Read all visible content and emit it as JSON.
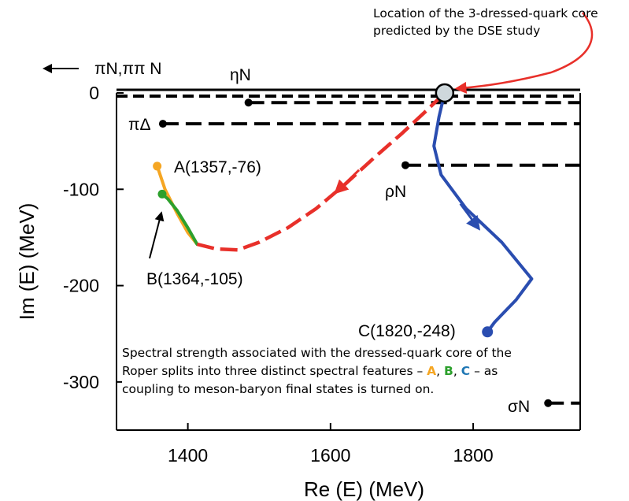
{
  "annotations": {
    "core_location": "Location of the 3-dressed-quark core predicted by the DSE study",
    "spectral_note_prefix": "Spectral strength associated with the dressed-quark core of the Roper splits into three distinct spectral features –",
    "spectral_note_a": "A",
    "spectral_note_sep1": ",",
    "spectral_note_b": "B",
    "spectral_note_sep2": ",",
    "spectral_note_c": "C",
    "spectral_note_suffix": "– as coupling to meson-baryon final states is turned on."
  },
  "colors": {
    "A": "#f5a623",
    "B": "#2ca02c",
    "C": "#2a4db0",
    "dse_path": "#e8302a",
    "arrow": "#e8302a"
  },
  "chart_data": {
    "type": "line",
    "xlabel": "Re (E) (MeV)",
    "ylabel": "Im (E) (MeV)",
    "xlim": [
      1300,
      1950
    ],
    "ylim": [
      -350,
      0
    ],
    "xticks": [
      1400,
      1600,
      1800
    ],
    "yticks": [
      0,
      -100,
      -200,
      -300
    ],
    "thresholds": [
      {
        "label": "πN,ππ N",
        "y": 0,
        "x_start": 1300,
        "direction": "left-arrow"
      },
      {
        "label": "ηN",
        "y": -10,
        "x_start": 1485
      },
      {
        "label": "πΔ",
        "y": -32,
        "x_start": 1365
      },
      {
        "label": "ρN",
        "y": -75,
        "x_start": 1705
      },
      {
        "label": "σN",
        "y": -322,
        "x_start": 1905
      }
    ],
    "points": [
      {
        "label": "A(1357,-76)",
        "x": 1357,
        "y": -76
      },
      {
        "label": "B(1364,-105)",
        "x": 1364,
        "y": -105
      },
      {
        "label": "C(1820,-248)",
        "x": 1820,
        "y": -248
      }
    ],
    "core": {
      "x": 1760,
      "y": 0
    },
    "series": [
      {
        "name": "A",
        "x": [
          1357,
          1368,
          1385,
          1400,
          1413
        ],
        "y": [
          -76,
          -100,
          -125,
          -145,
          -157
        ]
      },
      {
        "name": "B",
        "x": [
          1364,
          1372,
          1385,
          1400,
          1413
        ],
        "y": [
          -105,
          -110,
          -122,
          -140,
          -157
        ]
      },
      {
        "x": [
          1413,
          1440,
          1470,
          1500,
          1540,
          1580,
          1620,
          1660,
          1700,
          1735,
          1760
        ],
        "y": [
          -157,
          -162,
          -163,
          -155,
          -140,
          -120,
          -95,
          -68,
          -42,
          -18,
          0
        ]
      },
      {
        "name": "C",
        "x": [
          1760,
          1752,
          1745,
          1755,
          1790,
          1840,
          1882,
          1860,
          1830,
          1820
        ],
        "y": [
          0,
          -25,
          -55,
          -85,
          -120,
          -155,
          -193,
          -215,
          -238,
          -248
        ]
      }
    ]
  }
}
